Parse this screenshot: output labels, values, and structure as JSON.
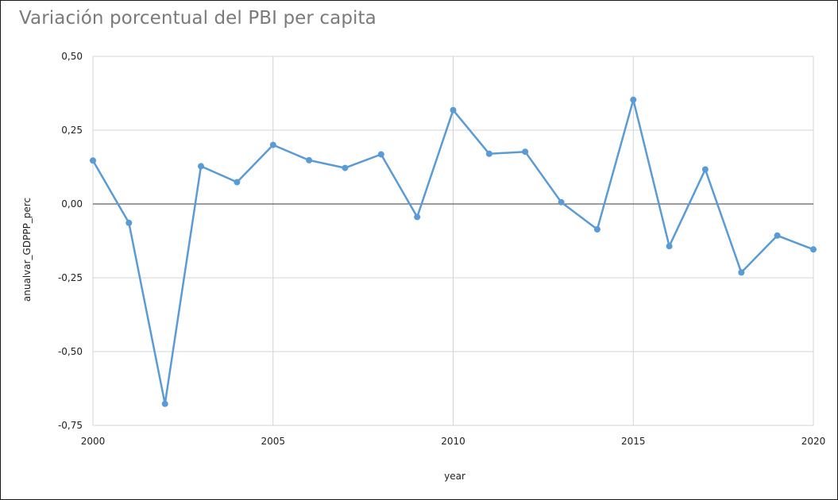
{
  "chart_data": {
    "type": "line",
    "title": "Variación porcentual del PBI per capita",
    "xlabel": "year",
    "ylabel": "anualvar_GDPPP_perc",
    "xlim": [
      2000,
      2020
    ],
    "ylim": [
      -0.75,
      0.5
    ],
    "x_ticks": [
      2000,
      2005,
      2010,
      2015,
      2020
    ],
    "x_tick_labels": [
      "2000",
      "2005",
      "2010",
      "2015",
      "2020"
    ],
    "y_ticks": [
      0.5,
      0.25,
      0.0,
      -0.25,
      -0.5,
      -0.75
    ],
    "y_tick_labels": [
      "0,50",
      "0,25",
      "0,00",
      "-0,25",
      "-0,50",
      "-0,75"
    ],
    "grid": true,
    "legend": "none",
    "series": [
      {
        "color": "#5b9bd5",
        "x": [
          2000,
          2001,
          2002,
          2003,
          2004,
          2005,
          2006,
          2007,
          2008,
          2009,
          2010,
          2011,
          2012,
          2013,
          2014,
          2015,
          2016,
          2017,
          2018,
          2019,
          2020
        ],
        "values": [
          0.147,
          -0.064,
          -0.677,
          0.128,
          0.074,
          0.2,
          0.148,
          0.122,
          0.168,
          -0.044,
          0.318,
          0.17,
          0.177,
          0.006,
          -0.086,
          0.353,
          -0.143,
          0.117,
          -0.232,
          -0.107,
          -0.154
        ]
      }
    ]
  }
}
